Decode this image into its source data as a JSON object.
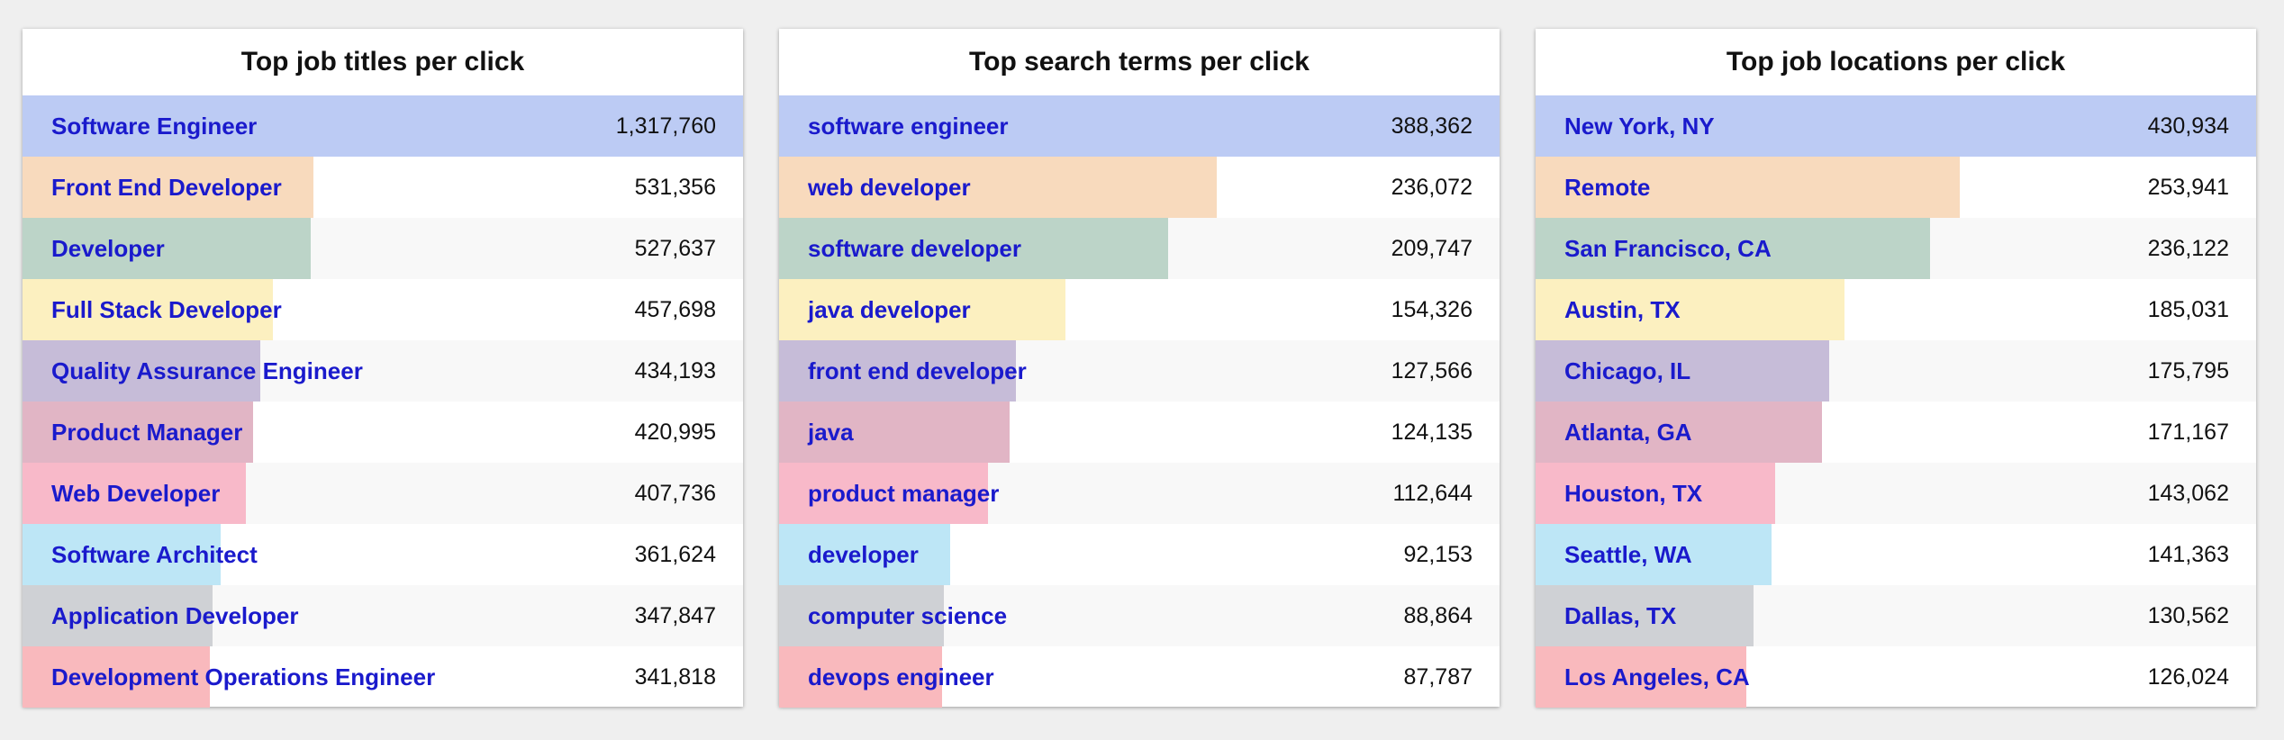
{
  "colors": [
    "#bccbf4",
    "#f8dabd",
    "#bcd4c8",
    "#fcf0c0",
    "#c6bcd8",
    "#e1b5c5",
    "#f8b9c9",
    "#bde6f6",
    "#cfd1d5",
    "#f9b9bd"
  ],
  "chart_data": [
    {
      "type": "bar",
      "orientation": "horizontal",
      "title": "Top job titles per click",
      "categories": [
        "Software Engineer",
        "Front End Developer",
        "Developer",
        "Full Stack Developer",
        "Quality Assurance Engineer",
        "Product Manager",
        "Web Developer",
        "Software Architect",
        "Application Developer",
        "Development Operations Engineer"
      ],
      "values": [
        1317760,
        531356,
        527637,
        457698,
        434193,
        420995,
        407736,
        361624,
        347847,
        341818
      ],
      "value_labels": [
        "1,317,760",
        "531,356",
        "527,637",
        "457,698",
        "434,193",
        "420,995",
        "407,736",
        "361,624",
        "347,847",
        "341,818"
      ]
    },
    {
      "type": "bar",
      "orientation": "horizontal",
      "title": "Top search terms per click",
      "categories": [
        "software engineer",
        "web developer",
        "software developer",
        "java developer",
        "front end developer",
        "java",
        "product manager",
        "developer",
        "computer science",
        "devops engineer"
      ],
      "values": [
        388362,
        236072,
        209747,
        154326,
        127566,
        124135,
        112644,
        92153,
        88864,
        87787
      ],
      "value_labels": [
        "388,362",
        "236,072",
        "209,747",
        "154,326",
        "127,566",
        "124,135",
        "112,644",
        "92,153",
        "88,864",
        "87,787"
      ]
    },
    {
      "type": "bar",
      "orientation": "horizontal",
      "title": "Top job locations per click",
      "categories": [
        "New York, NY",
        "Remote",
        "San Francisco, CA",
        "Austin, TX",
        "Chicago, IL",
        "Atlanta, GA",
        "Houston, TX",
        "Seattle, WA",
        "Dallas, TX",
        "Los Angeles, CA"
      ],
      "values": [
        430934,
        253941,
        236122,
        185031,
        175795,
        171167,
        143062,
        141363,
        130562,
        126024
      ],
      "value_labels": [
        "430,934",
        "253,941",
        "236,122",
        "185,031",
        "175,795",
        "171,167",
        "143,062",
        "141,363",
        "130,562",
        "126,024"
      ]
    }
  ]
}
